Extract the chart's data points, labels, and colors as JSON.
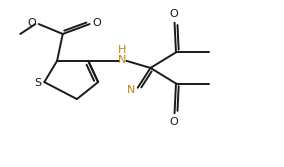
{
  "bg_color": "#ffffff",
  "bond_color": "#1a1a1a",
  "atom_colors": {
    "S": "#1a1a1a",
    "O": "#1a1a1a",
    "N": "#b8860b",
    "H": "#b8860b"
  },
  "line_width": 1.4,
  "figsize": [
    2.84,
    1.67
  ],
  "dpi": 100
}
